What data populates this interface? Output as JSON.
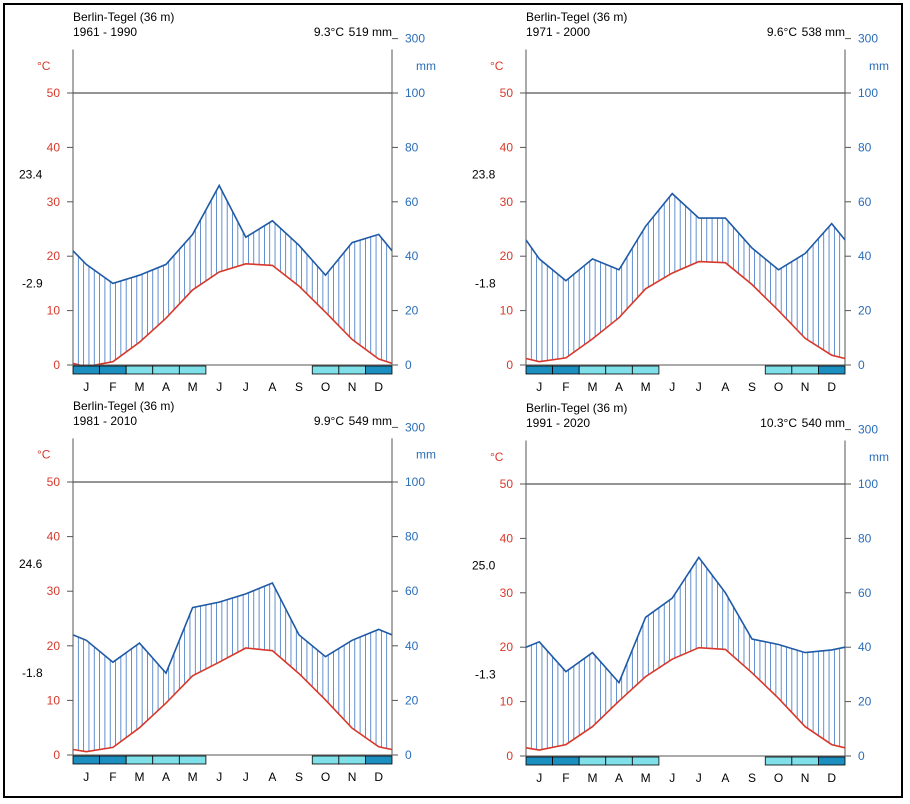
{
  "colors": {
    "temperature": "#d8382a",
    "precipitation": "#1f5aa6",
    "hatch": "#3b74c4",
    "frost_certain": "#1a8fc0",
    "frost_possible": "#7fe0ea"
  },
  "chart_data": [
    {
      "type": "line",
      "station": "Berlin-Tegel (36 m)",
      "period": "1961 - 1990",
      "mean_temp": "9.3°C",
      "annual_precip": "519 mm",
      "max_label": "23.4",
      "min_label": "-2.9",
      "temp_unit": "°C",
      "precip_unit": "mm",
      "categories": [
        "J",
        "F",
        "M",
        "A",
        "M",
        "J",
        "J",
        "A",
        "S",
        "O",
        "N",
        "D"
      ],
      "temp_ticks": [
        "0",
        "10",
        "20",
        "30",
        "40",
        "50"
      ],
      "precip_ticks": [
        "0",
        "20",
        "40",
        "60",
        "80",
        "100",
        "300"
      ],
      "temperature": [
        -0.3,
        0.6,
        4.2,
        8.6,
        13.8,
        17.1,
        18.6,
        18.3,
        14.5,
        9.7,
        4.7,
        1.1
      ],
      "precipitation": [
        37,
        30,
        33,
        37,
        48,
        66,
        47,
        53,
        44,
        33,
        45,
        48
      ],
      "ends": {
        "temp_start": 0.3,
        "temp_end": 0.3,
        "precip_start": 42,
        "precip_end": 42
      },
      "frost": [
        "certain",
        "certain",
        "possible",
        "possible",
        "possible",
        "none",
        "none",
        "none",
        "none",
        "possible",
        "possible",
        "certain"
      ]
    },
    {
      "type": "line",
      "station": "Berlin-Tegel (36 m)",
      "period": "1971 - 2000",
      "mean_temp": "9.6°C",
      "annual_precip": "538 mm",
      "max_label": "23.8",
      "min_label": "-1.8",
      "temp_unit": "°C",
      "precip_unit": "mm",
      "categories": [
        "J",
        "F",
        "M",
        "A",
        "M",
        "J",
        "J",
        "A",
        "S",
        "O",
        "N",
        "D"
      ],
      "temp_ticks": [
        "0",
        "10",
        "20",
        "30",
        "40",
        "50"
      ],
      "precip_ticks": [
        "0",
        "20",
        "40",
        "60",
        "80",
        "100",
        "300"
      ],
      "temperature": [
        0.6,
        1.3,
        4.8,
        8.7,
        14.0,
        16.9,
        19.0,
        18.8,
        14.8,
        10.0,
        4.9,
        1.8
      ],
      "precipitation": [
        39,
        31,
        39,
        35,
        51,
        63,
        54,
        54,
        43,
        35,
        41,
        52
      ],
      "ends": {
        "temp_start": 1.2,
        "temp_end": 1.2,
        "precip_start": 46,
        "precip_end": 46
      },
      "frost": [
        "certain",
        "certain",
        "possible",
        "possible",
        "possible",
        "none",
        "none",
        "none",
        "none",
        "possible",
        "possible",
        "certain"
      ]
    },
    {
      "type": "line",
      "station": "Berlin-Tegel (36 m)",
      "period": "1981 - 2010",
      "mean_temp": "9.9°C",
      "annual_precip": "549 mm",
      "max_label": "24.6",
      "min_label": "-1.8",
      "temp_unit": "°C",
      "precip_unit": "mm",
      "categories": [
        "J",
        "F",
        "M",
        "A",
        "M",
        "J",
        "J",
        "A",
        "S",
        "O",
        "N",
        "D"
      ],
      "temp_ticks": [
        "0",
        "10",
        "20",
        "30",
        "40",
        "50"
      ],
      "precip_ticks": [
        "0",
        "20",
        "40",
        "60",
        "80",
        "100",
        "300"
      ],
      "temperature": [
        0.6,
        1.4,
        5.0,
        9.5,
        14.5,
        17.0,
        19.6,
        19.1,
        14.9,
        10.1,
        4.9,
        1.5
      ],
      "precipitation": [
        42,
        34,
        41,
        30,
        54,
        56,
        59,
        63,
        44,
        36,
        42,
        46
      ],
      "ends": {
        "temp_start": 1.0,
        "temp_end": 1.0,
        "precip_start": 44,
        "precip_end": 44
      },
      "frost": [
        "certain",
        "certain",
        "possible",
        "possible",
        "possible",
        "none",
        "none",
        "none",
        "none",
        "possible",
        "possible",
        "certain"
      ]
    },
    {
      "type": "line",
      "station": "Berlin-Tegel (36 m)",
      "period": "1991 - 2020",
      "mean_temp": "10.3°C",
      "annual_precip": "540 mm",
      "max_label": "25.0",
      "min_label": "-1.3",
      "temp_unit": "°C",
      "precip_unit": "mm",
      "categories": [
        "J",
        "F",
        "M",
        "A",
        "M",
        "J",
        "J",
        "A",
        "S",
        "O",
        "N",
        "D"
      ],
      "temp_ticks": [
        "0",
        "10",
        "20",
        "30",
        "40",
        "50"
      ],
      "precip_ticks": [
        "0",
        "20",
        "40",
        "60",
        "80",
        "100",
        "300"
      ],
      "temperature": [
        1.1,
        2.1,
        5.4,
        10.1,
        14.6,
        17.8,
        19.9,
        19.6,
        15.3,
        10.6,
        5.4,
        2.1
      ],
      "precipitation": [
        42,
        31,
        38,
        27,
        51,
        58,
        73,
        60,
        43,
        41,
        38,
        39
      ],
      "ends": {
        "temp_start": 1.5,
        "temp_end": 1.5,
        "precip_start": 40,
        "precip_end": 40
      },
      "frost": [
        "certain",
        "certain",
        "possible",
        "possible",
        "possible",
        "none",
        "none",
        "none",
        "none",
        "possible",
        "possible",
        "certain"
      ]
    }
  ]
}
